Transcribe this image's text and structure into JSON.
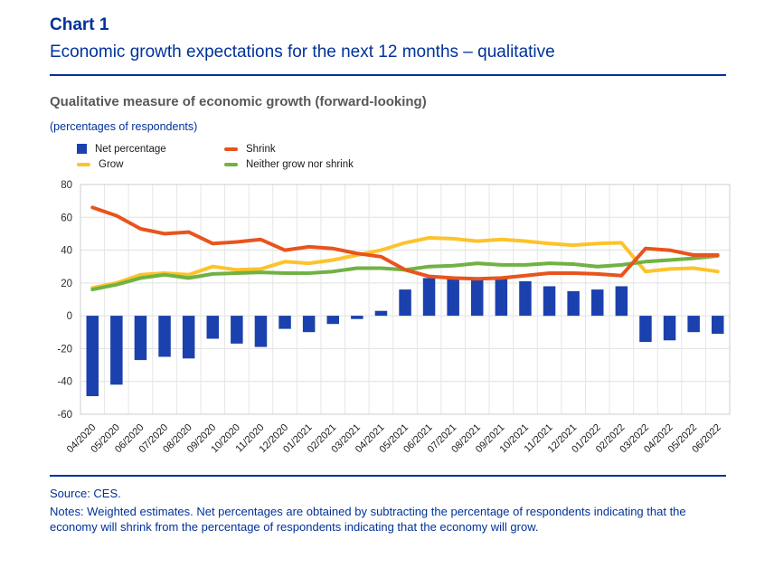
{
  "header": {
    "chart_label": "Chart 1",
    "title": "Economic growth expectations for the next 12 months – qualitative"
  },
  "subtitle": {
    "heading": "Qualitative measure of economic growth (forward-looking)",
    "units": "(percentages of respondents)"
  },
  "legend": {
    "items": [
      {
        "label": "Net percentage",
        "marker": "square",
        "color": "#1b41ae"
      },
      {
        "label": "Shrink",
        "marker": "dash",
        "color": "#e8541d"
      },
      {
        "label": "Grow",
        "marker": "dash",
        "color": "#fdc32b"
      },
      {
        "label": "Neither grow nor shrink",
        "marker": "dash",
        "color": "#70b243"
      }
    ]
  },
  "chart_data": {
    "type": "bar+line",
    "title": "Qualitative measure of economic growth (forward-looking)",
    "ylabel": "percentages of respondents",
    "ylim": [
      -60,
      80
    ],
    "ytick_step": 20,
    "grid": true,
    "legend_position": "top-left",
    "categories": [
      "04/2020",
      "05/2020",
      "06/2020",
      "07/2020",
      "08/2020",
      "09/2020",
      "10/2020",
      "11/2020",
      "12/2020",
      "01/2021",
      "02/2021",
      "03/2021",
      "04/2021",
      "05/2021",
      "06/2021",
      "07/2021",
      "08/2021",
      "09/2021",
      "10/2021",
      "11/2021",
      "12/2021",
      "01/2022",
      "02/2022",
      "03/2022",
      "04/2022",
      "05/2022",
      "06/2022"
    ],
    "series": [
      {
        "name": "Net percentage",
        "type": "bar",
        "color": "#1b41ae",
        "values": [
          -49,
          -42,
          -27,
          -25,
          -26,
          -14,
          -17,
          -19,
          -8,
          -10,
          -5,
          -2,
          3,
          16,
          23,
          23,
          22,
          23,
          21,
          18,
          15,
          16,
          18,
          -16,
          -15,
          -10,
          -11
        ]
      },
      {
        "name": "Shrink",
        "type": "line",
        "color": "#e8541d",
        "values": [
          66,
          61,
          53,
          50,
          51,
          44,
          45,
          46.5,
          40,
          42,
          41,
          38,
          36,
          28,
          24,
          23,
          22.5,
          23,
          24.5,
          26,
          26,
          25.5,
          24.5,
          41,
          40,
          37,
          37
        ]
      },
      {
        "name": "Grow",
        "type": "line",
        "color": "#fdc32b",
        "values": [
          17,
          20,
          25,
          26,
          25,
          30,
          28,
          28.5,
          33,
          32,
          34,
          37,
          40,
          44.5,
          47.5,
          47,
          45.5,
          46.5,
          45.5,
          44,
          43,
          44,
          44.5,
          27,
          28.5,
          29,
          27
        ]
      },
      {
        "name": "Neither grow nor shrink",
        "type": "line",
        "color": "#70b243",
        "values": [
          16,
          19,
          23,
          25,
          23,
          25.5,
          26,
          26.5,
          26,
          26,
          27,
          29,
          29,
          28,
          30,
          30.5,
          32,
          31,
          31,
          32,
          31.5,
          30,
          31,
          33,
          34,
          35,
          36.5
        ]
      }
    ]
  },
  "footer": {
    "source": "Source: CES.",
    "notes": "Notes: Weighted estimates. Net percentages are obtained by subtracting the percentage of respondents indicating that the economy will shrink from the percentage of respondents indicating that the economy will grow."
  },
  "colors": {
    "accent_blue": "#003299",
    "heading_gray": "#58585a",
    "grid_gray": "#e3e3e3",
    "axis_text": "#2b2b2b"
  }
}
